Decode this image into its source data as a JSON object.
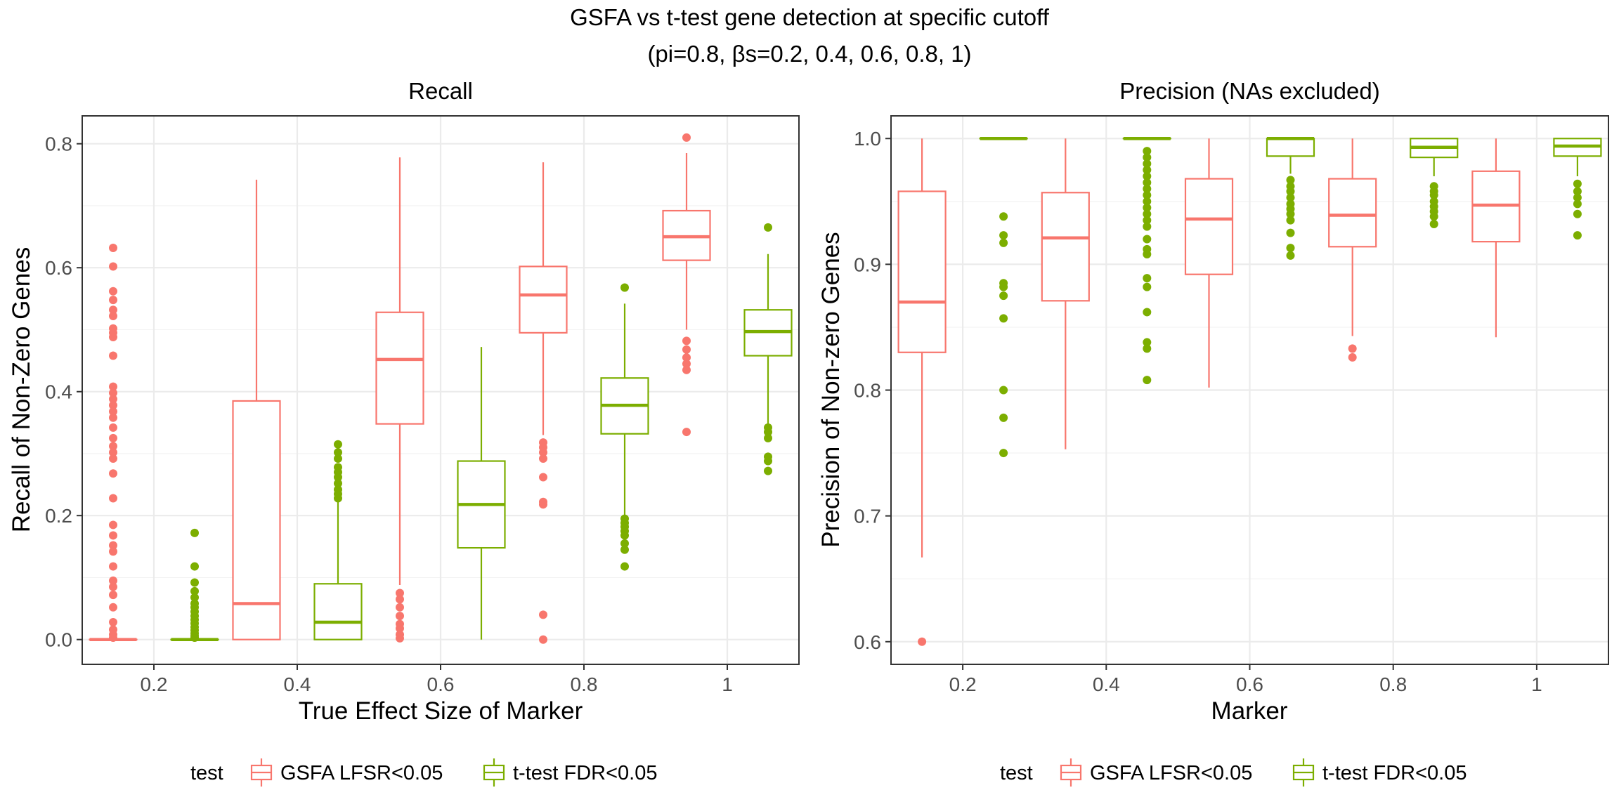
{
  "title": "GSFA vs t-test gene detection at specific cutoff",
  "subtitle": "(pi=0.8, βs=0.2, 0.4, 0.6, 0.8, 1)",
  "colors": {
    "GSFA LFSR<0.05": "#F8766D",
    "t-test FDR<0.05": "#7CAE00"
  },
  "legend": {
    "title": "test",
    "entries": [
      "GSFA LFSR<0.05",
      "t-test FDR<0.05"
    ],
    "position": "bottom"
  },
  "chart_data": [
    {
      "type": "box",
      "title": "Recall",
      "xlabel": "True Effect Size of Marker",
      "ylabel": "Recall of Non-Zero Genes",
      "categories": [
        "0.2",
        "0.4",
        "0.6",
        "0.8",
        "1"
      ],
      "ylim": [
        -0.04,
        0.845
      ],
      "yticks": [
        0.0,
        0.2,
        0.4,
        0.6,
        0.8
      ],
      "ytick_labels": [
        "0.0",
        "0.2",
        "0.4",
        "0.6",
        "0.8"
      ],
      "grid": true,
      "series": [
        {
          "name": "GSFA LFSR<0.05",
          "boxes": [
            {
              "lower_whisker": 0.0,
              "q1": 0.0,
              "median": 0.0,
              "q3": 0.0,
              "upper_whisker": 0.0,
              "outliers": [
                0.632,
                0.602,
                0.562,
                0.548,
                0.532,
                0.522,
                0.502,
                0.495,
                0.488,
                0.458,
                0.408,
                0.398,
                0.388,
                0.378,
                0.368,
                0.358,
                0.342,
                0.325,
                0.312,
                0.302,
                0.292,
                0.268,
                0.228,
                0.185,
                0.168,
                0.152,
                0.142,
                0.118,
                0.095,
                0.085,
                0.072,
                0.052,
                0.028,
                0.016,
                0.008,
                0.003
              ]
            },
            {
              "lower_whisker": 0.0,
              "q1": 0.0,
              "median": 0.058,
              "q3": 0.385,
              "upper_whisker": 0.742,
              "outliers": []
            },
            {
              "lower_whisker": 0.088,
              "q1": 0.348,
              "median": 0.452,
              "q3": 0.528,
              "upper_whisker": 0.778,
              "outliers": [
                0.075,
                0.065,
                0.052,
                0.038,
                0.025,
                0.018,
                0.008,
                0.002
              ]
            },
            {
              "lower_whisker": 0.33,
              "q1": 0.495,
              "median": 0.556,
              "q3": 0.602,
              "upper_whisker": 0.77,
              "outliers": [
                0.318,
                0.31,
                0.302,
                0.292,
                0.262,
                0.222,
                0.218,
                0.04,
                0.0
              ]
            },
            {
              "lower_whisker": 0.5,
              "q1": 0.612,
              "median": 0.65,
              "q3": 0.692,
              "upper_whisker": 0.785,
              "outliers": [
                0.81,
                0.482,
                0.468,
                0.455,
                0.445,
                0.435,
                0.335
              ]
            }
          ]
        },
        {
          "name": "t-test FDR<0.05",
          "boxes": [
            {
              "lower_whisker": 0.0,
              "q1": 0.0,
              "median": 0.0,
              "q3": 0.0,
              "upper_whisker": 0.0,
              "outliers": [
                0.172,
                0.118,
                0.092,
                0.078,
                0.068,
                0.058,
                0.052,
                0.045,
                0.038,
                0.032,
                0.026,
                0.02,
                0.015,
                0.01,
                0.006,
                0.003
              ]
            },
            {
              "lower_whisker": 0.0,
              "q1": 0.0,
              "median": 0.028,
              "q3": 0.09,
              "upper_whisker": 0.222,
              "outliers": [
                0.315,
                0.302,
                0.292,
                0.278,
                0.27,
                0.262,
                0.252,
                0.242,
                0.235,
                0.228
              ]
            },
            {
              "lower_whisker": 0.0,
              "q1": 0.148,
              "median": 0.218,
              "q3": 0.288,
              "upper_whisker": 0.472,
              "outliers": []
            },
            {
              "lower_whisker": 0.2,
              "q1": 0.332,
              "median": 0.378,
              "q3": 0.422,
              "upper_whisker": 0.542,
              "outliers": [
                0.568,
                0.195,
                0.188,
                0.182,
                0.175,
                0.168,
                0.155,
                0.145,
                0.118
              ]
            },
            {
              "lower_whisker": 0.348,
              "q1": 0.458,
              "median": 0.497,
              "q3": 0.532,
              "upper_whisker": 0.622,
              "outliers": [
                0.665,
                0.342,
                0.335,
                0.325,
                0.295,
                0.288,
                0.272
              ]
            }
          ]
        }
      ]
    },
    {
      "type": "box",
      "title": "Precision (NAs excluded)",
      "xlabel": "Marker",
      "ylabel": "Precision of Non-zero Genes",
      "categories": [
        "0.2",
        "0.4",
        "0.6",
        "0.8",
        "1"
      ],
      "ylim": [
        0.582,
        1.018
      ],
      "yticks": [
        0.6,
        0.7,
        0.8,
        0.9,
        1.0
      ],
      "ytick_labels": [
        "0.6",
        "0.7",
        "0.8",
        "0.9",
        "1.0"
      ],
      "grid": true,
      "series": [
        {
          "name": "GSFA LFSR<0.05",
          "boxes": [
            {
              "lower_whisker": 0.667,
              "q1": 0.83,
              "median": 0.87,
              "q3": 0.958,
              "upper_whisker": 1.0,
              "outliers": [
                0.6
              ]
            },
            {
              "lower_whisker": 0.753,
              "q1": 0.871,
              "median": 0.921,
              "q3": 0.957,
              "upper_whisker": 1.0,
              "outliers": []
            },
            {
              "lower_whisker": 0.802,
              "q1": 0.892,
              "median": 0.936,
              "q3": 0.968,
              "upper_whisker": 1.0,
              "outliers": []
            },
            {
              "lower_whisker": 0.843,
              "q1": 0.914,
              "median": 0.939,
              "q3": 0.968,
              "upper_whisker": 1.0,
              "outliers": [
                0.833,
                0.826
              ]
            },
            {
              "lower_whisker": 0.842,
              "q1": 0.918,
              "median": 0.947,
              "q3": 0.974,
              "upper_whisker": 1.0,
              "outliers": []
            }
          ]
        },
        {
          "name": "t-test FDR<0.05",
          "boxes": [
            {
              "lower_whisker": 1.0,
              "q1": 1.0,
              "median": 1.0,
              "q3": 1.0,
              "upper_whisker": 1.0,
              "outliers": [
                0.938,
                0.923,
                0.917,
                0.885,
                0.882,
                0.875,
                0.857,
                0.8,
                0.778,
                0.75
              ]
            },
            {
              "lower_whisker": 1.0,
              "q1": 1.0,
              "median": 1.0,
              "q3": 1.0,
              "upper_whisker": 1.0,
              "outliers": [
                0.99,
                0.985,
                0.98,
                0.975,
                0.97,
                0.965,
                0.96,
                0.955,
                0.95,
                0.945,
                0.94,
                0.935,
                0.93,
                0.92,
                0.912,
                0.908,
                0.889,
                0.882,
                0.862,
                0.838,
                0.833,
                0.808
              ]
            },
            {
              "lower_whisker": 0.972,
              "q1": 0.986,
              "median": 1.0,
              "q3": 1.0,
              "upper_whisker": 1.0,
              "outliers": [
                0.967,
                0.962,
                0.958,
                0.953,
                0.948,
                0.944,
                0.94,
                0.935,
                0.925,
                0.913,
                0.907
              ]
            },
            {
              "lower_whisker": 0.97,
              "q1": 0.985,
              "median": 0.993,
              "q3": 1.0,
              "upper_whisker": 1.0,
              "outliers": [
                0.962,
                0.958,
                0.955,
                0.95,
                0.946,
                0.942,
                0.938,
                0.932
              ]
            },
            {
              "lower_whisker": 0.97,
              "q1": 0.986,
              "median": 0.994,
              "q3": 1.0,
              "upper_whisker": 1.0,
              "outliers": [
                0.964,
                0.958,
                0.953,
                0.948,
                0.94,
                0.923
              ]
            }
          ]
        }
      ]
    }
  ]
}
